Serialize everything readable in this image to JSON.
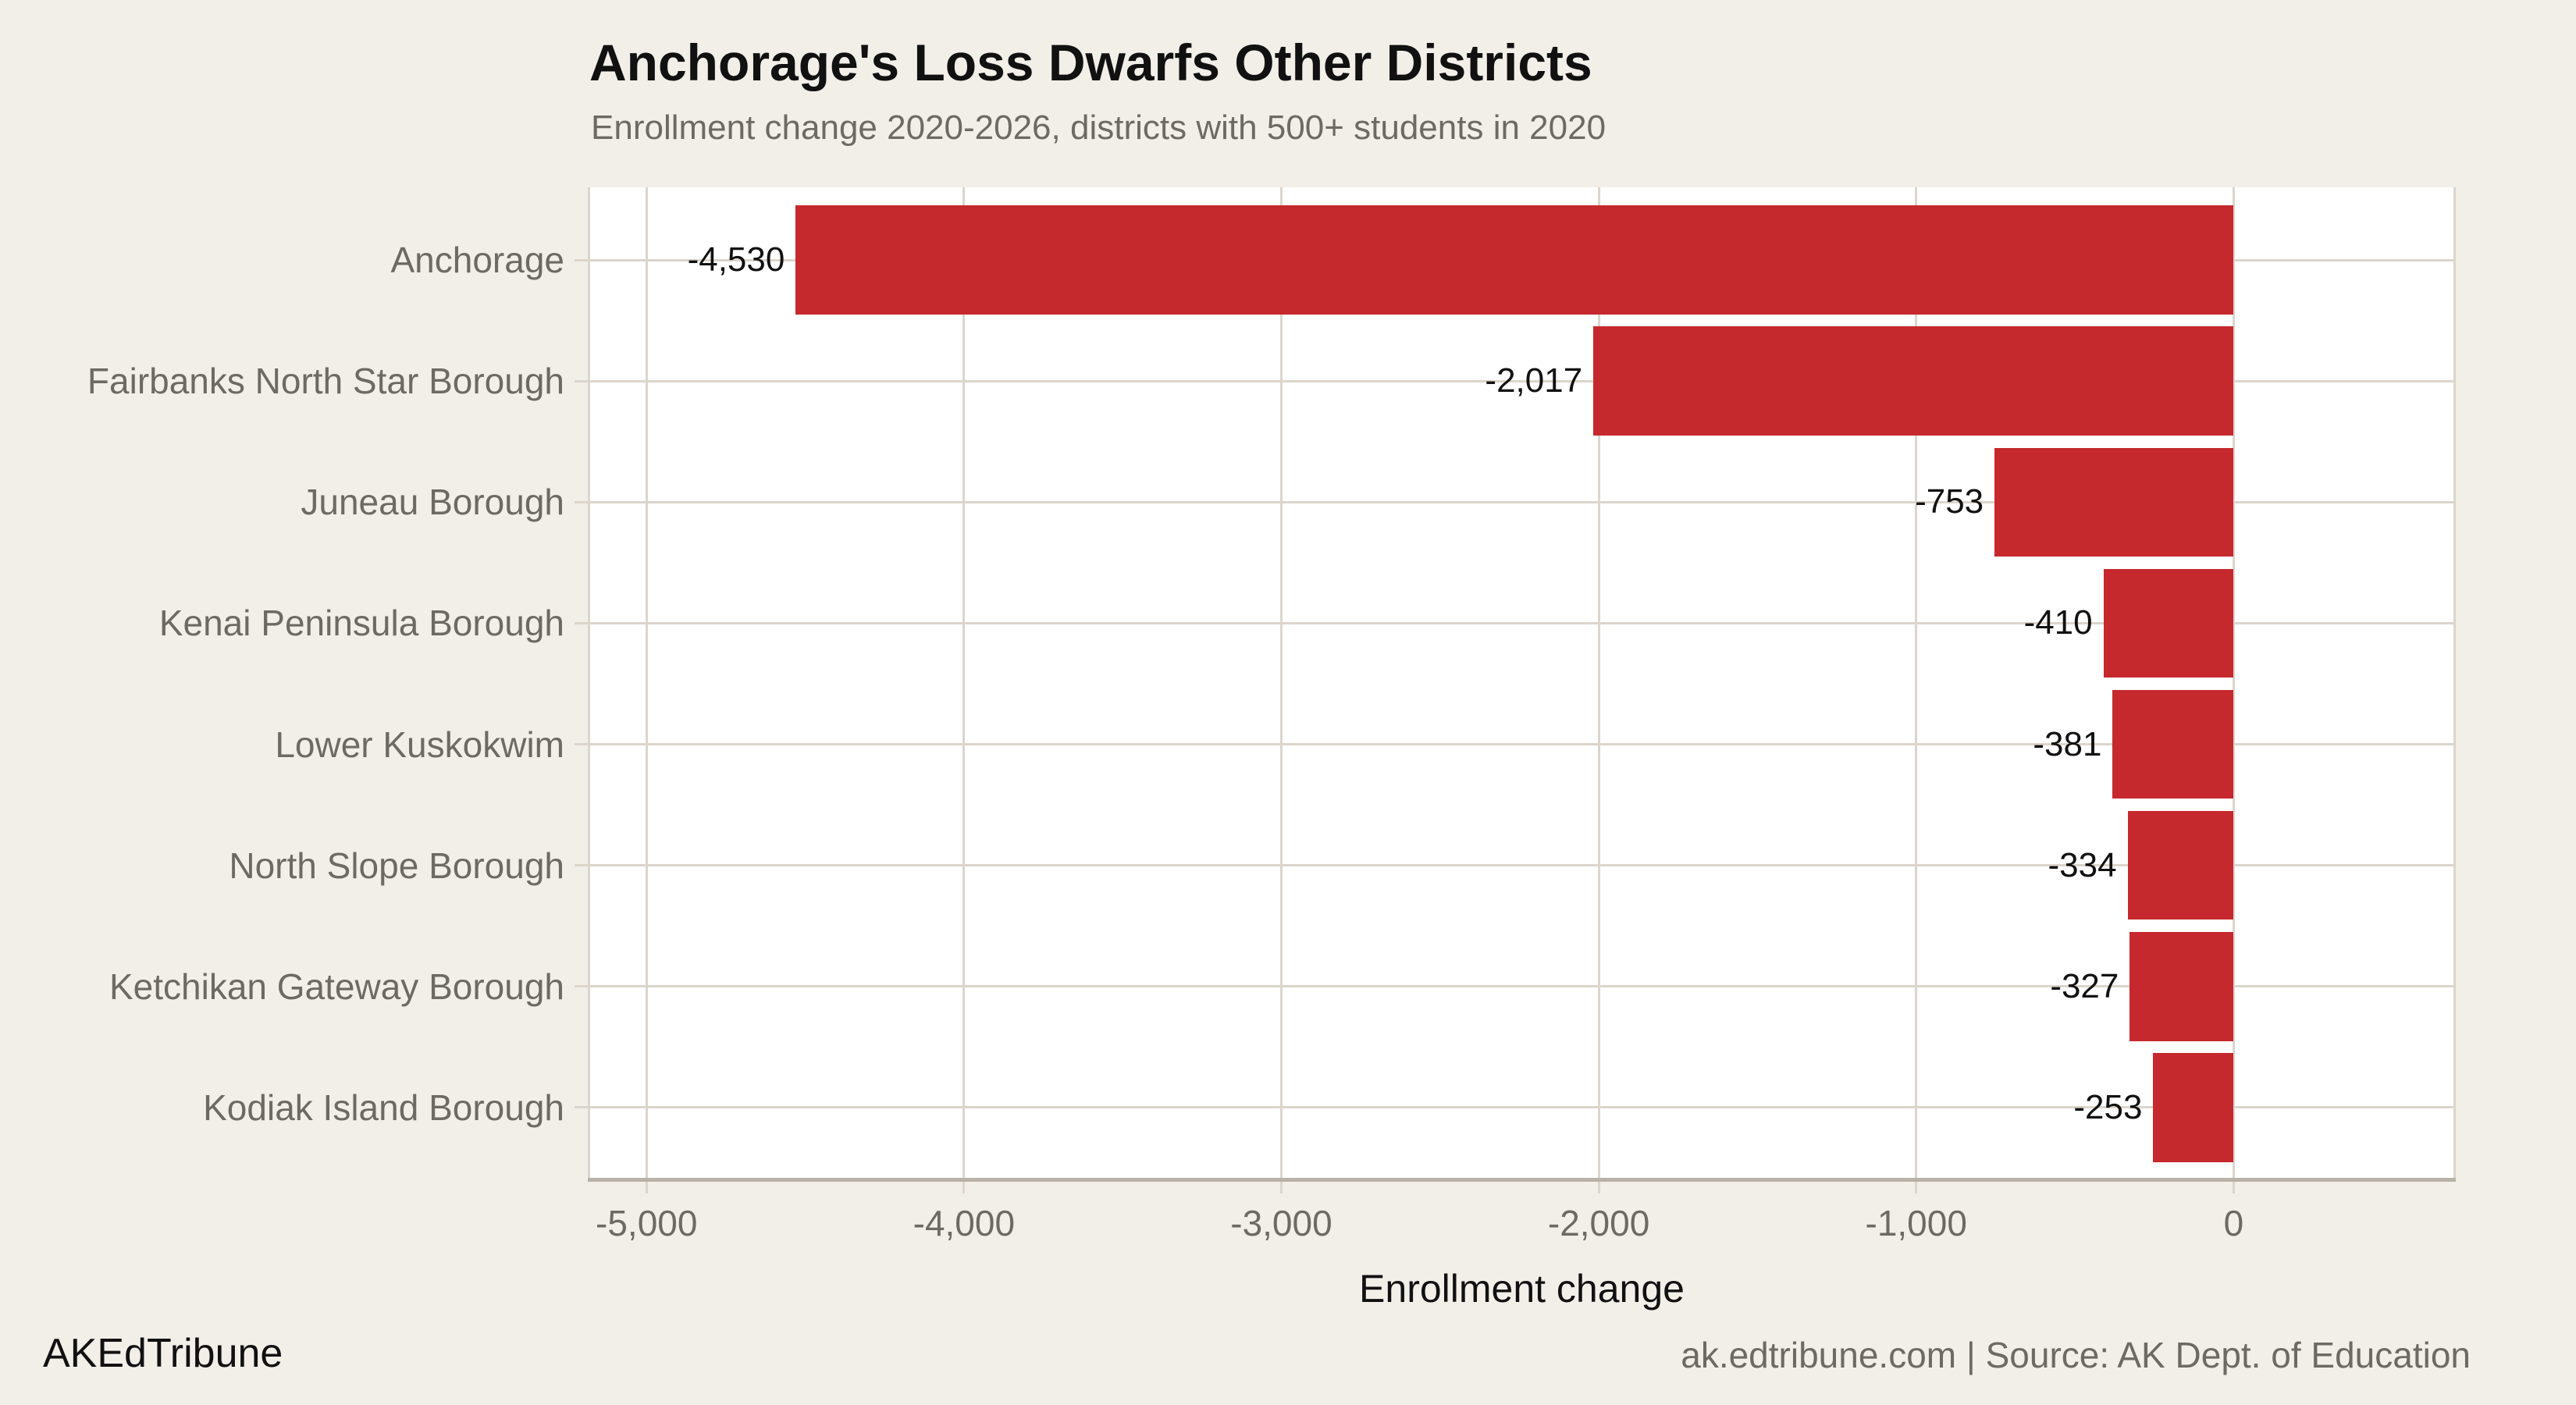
{
  "footer": {
    "brand": "AKEdTribune",
    "source_line": "ak.edtribune.com | Source: AK Dept. of Education"
  },
  "colors": {
    "background": "#f2efe9",
    "panel": "#ffffff",
    "bar": "#c5292d",
    "grid": "#dbd5cc",
    "axis_line": "#b9b2a8",
    "title_text": "#111111",
    "muted_text": "#6e6a63"
  },
  "chart_data": {
    "type": "bar",
    "orientation": "horizontal",
    "title": "Anchorage's Loss Dwarfs Other Districts",
    "subtitle": "Enrollment change 2020-2026, districts with 500+ students in 2020",
    "xlabel": "Enrollment change",
    "ylabel": "",
    "categories": [
      "Anchorage",
      "Fairbanks North Star Borough",
      "Juneau Borough",
      "Kenai Peninsula Borough",
      "Lower Kuskokwim",
      "North Slope Borough",
      "Ketchikan Gateway Borough",
      "Kodiak Island Borough"
    ],
    "values": [
      -4530,
      -2017,
      -753,
      -410,
      -381,
      -334,
      -327,
      -253
    ],
    "value_labels": [
      "-4,530",
      "-2,017",
      "-753",
      "-410",
      "-381",
      "-334",
      "-327",
      "-253"
    ],
    "x_ticks": [
      -5000,
      -4000,
      -3000,
      -2000,
      -1000,
      0
    ],
    "x_tick_labels": [
      "-5,000",
      "-4,000",
      "-3,000",
      "-2,000",
      "-1,000",
      "0"
    ],
    "xlim": [
      -5185,
      700
    ],
    "grid": true,
    "legend": false,
    "bar_color": "#c5292d",
    "bar_width_fraction": 0.9
  }
}
